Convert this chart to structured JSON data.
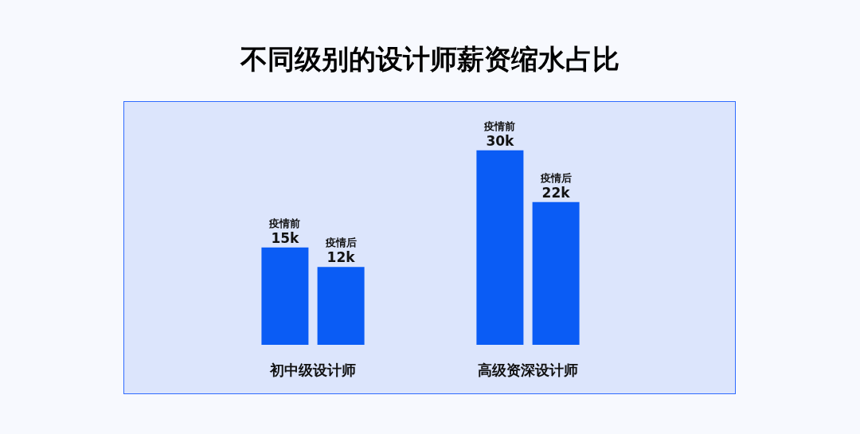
{
  "chart_data": {
    "type": "bar",
    "title": "不同级别的设计师薪资缩水占比",
    "categories": [
      "初中级设计师",
      "高级资深设计师"
    ],
    "series": [
      {
        "name": "疫情前",
        "color": "#0a5cf5",
        "values": [
          15,
          30
        ],
        "value_labels": [
          "15k",
          "30k"
        ]
      },
      {
        "name": "疫情后",
        "color": "#0a5cf5",
        "values": [
          12,
          22
        ],
        "value_labels": [
          "12k",
          "22k"
        ]
      }
    ],
    "legend": false,
    "grid": false
  }
}
